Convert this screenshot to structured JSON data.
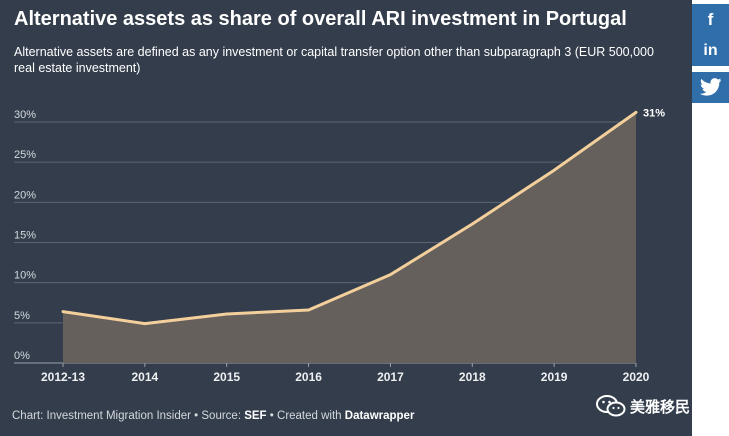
{
  "title": "Alternative assets as share of overall ARI investment in Portugal",
  "subtitle": "Alternative assets are defined as any investment or capital transfer option other than subparagraph 3 (EUR 500,000 real estate investment)",
  "footer": {
    "prefix": "Chart: Investment Migration Insider • Source: ",
    "source": "SEF",
    "middle": " • Created with ",
    "tool": "Datawrapper"
  },
  "social": {
    "facebook": "f",
    "linkedin": "in",
    "twitter_icon": "twitter-bird-icon"
  },
  "watermark": "美雅移民",
  "colors": {
    "background": "#333d4b",
    "line": "#f3cf9c",
    "area": "#66605d",
    "social": "#2f6ea8"
  },
  "chart_data": {
    "type": "area",
    "x": [
      "2012-13",
      "2014",
      "2015",
      "2016",
      "2017",
      "2018",
      "2019",
      "2020"
    ],
    "values": [
      6.4,
      4.9,
      6.1,
      6.6,
      11,
      17.3,
      24,
      31.2
    ],
    "ylim": [
      0,
      30
    ],
    "y_ticks": [
      "30%",
      "25%",
      "20%",
      "15%",
      "10%",
      "5%",
      "0%"
    ],
    "y_tick_values": [
      30,
      25,
      20,
      15,
      10,
      5,
      0
    ],
    "data_labels": [
      {
        "index": 7,
        "text": "31%"
      }
    ],
    "grid": true
  }
}
